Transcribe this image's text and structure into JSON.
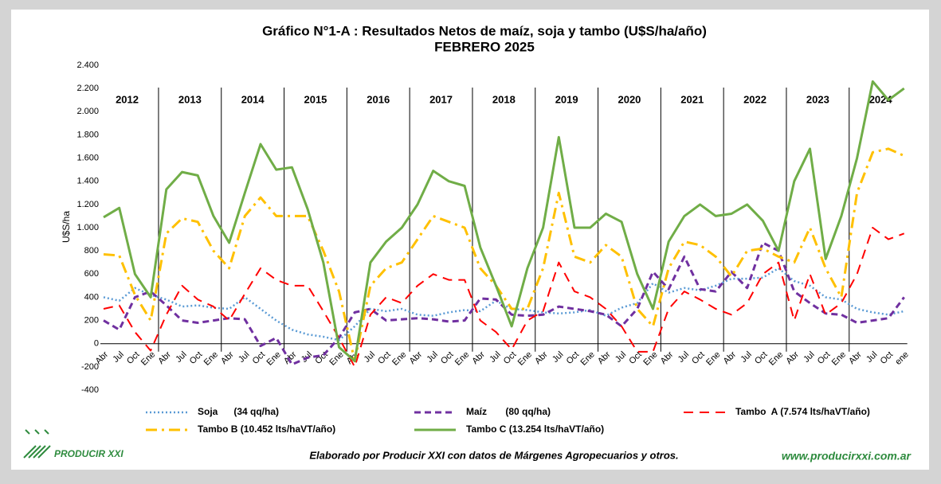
{
  "chart_data": {
    "type": "line",
    "title": "Gráfico N°1-A : Resultados Netos de maíz, soja y tambo (U$S/ha/año)",
    "subtitle": "FEBRERO 2025",
    "y_label": "U$S/ha",
    "years": [
      "2012",
      "2013",
      "2014",
      "2015",
      "2016",
      "2017",
      "2018",
      "2019",
      "2020",
      "2021",
      "2022",
      "2023",
      "2024"
    ],
    "categories": [
      "Abr",
      "Jul",
      "Oct",
      "Ene",
      "Abr",
      "Jul",
      "Oct",
      "Ene",
      "Abr",
      "Jul",
      "Oct",
      "Ene",
      "Abr",
      "Jul",
      "Oct",
      "Ene",
      "Abr",
      "Jul",
      "Oct",
      "Ene",
      "Abr",
      "Jul",
      "Oct",
      "Ene",
      "Abr",
      "Jul",
      "Oct",
      "Ene",
      "Abr",
      "Jul",
      "Oct",
      "Ene",
      "Abr",
      "Jul",
      "Oct",
      "Ene",
      "Abr",
      "Jul",
      "Oct",
      "Ene",
      "Abr",
      "Jul",
      "Oct",
      "Ene",
      "Abr",
      "Jul",
      "Oct",
      "Ene",
      "Abr",
      "Jul",
      "Oct",
      "ene"
    ],
    "ylim": [
      -400,
      2400
    ],
    "yticks": [
      -400,
      -200,
      0,
      200,
      400,
      600,
      800,
      {
        "value": 1000,
        "label": "1.000"
      },
      {
        "value": 1200,
        "label": "1.200"
      },
      {
        "value": 1400,
        "label": "1.400"
      },
      {
        "value": 1600,
        "label": "1.600"
      },
      {
        "value": 1800,
        "label": "1.800"
      },
      {
        "value": 2000,
        "label": "2.000"
      },
      {
        "value": 2200,
        "label": "2.200"
      },
      {
        "value": 2400,
        "label": "2.400"
      }
    ],
    "series": [
      {
        "name": "Soja      (34 qq/ha)",
        "color": "#5b9bd5",
        "dash": "dotted",
        "values": [
          400,
          370,
          480,
          420,
          380,
          320,
          330,
          310,
          300,
          400,
          300,
          200,
          120,
          80,
          60,
          30,
          150,
          300,
          280,
          300,
          250,
          240,
          270,
          290,
          280,
          370,
          300,
          290,
          270,
          260,
          270,
          290,
          240,
          310,
          350,
          520,
          440,
          480,
          460,
          500,
          560,
          560,
          570,
          650,
          540,
          500,
          400,
          380,
          300,
          270,
          250,
          280
        ]
      },
      {
        "name": "Maíz       (80 qq/ha)",
        "color": "#7030a0",
        "dash": "dashed",
        "values": [
          200,
          120,
          400,
          450,
          330,
          200,
          180,
          200,
          220,
          210,
          -20,
          50,
          -180,
          -120,
          -100,
          50,
          270,
          300,
          200,
          210,
          220,
          210,
          190,
          200,
          390,
          380,
          250,
          240,
          250,
          320,
          300,
          280,
          250,
          150,
          300,
          620,
          470,
          750,
          470,
          450,
          620,
          480,
          870,
          800,
          450,
          350,
          260,
          250,
          180,
          200,
          220,
          400
        ]
      },
      {
        "name": "Tambo  A (7.574 lts/haVT/año)",
        "color": "#ff0000",
        "dash": "longdash",
        "values": [
          300,
          330,
          100,
          -60,
          250,
          500,
          380,
          320,
          200,
          430,
          650,
          550,
          500,
          500,
          280,
          50,
          -200,
          250,
          400,
          350,
          500,
          600,
          550,
          550,
          200,
          100,
          -50,
          200,
          280,
          700,
          450,
          400,
          300,
          150,
          -70,
          -70,
          300,
          450,
          380,
          300,
          250,
          350,
          600,
          700,
          200,
          600,
          250,
          350,
          600,
          1000,
          900,
          950
        ]
      },
      {
        "name": "Tambo B (10.452 lts/haVT/año)",
        "color": "#ffc000",
        "dash": "dashdot",
        "values": [
          770,
          760,
          420,
          200,
          950,
          1080,
          1050,
          800,
          650,
          1100,
          1260,
          1100,
          1100,
          1100,
          800,
          450,
          -150,
          500,
          650,
          700,
          900,
          1100,
          1050,
          1000,
          650,
          500,
          300,
          300,
          650,
          1300,
          750,
          700,
          850,
          750,
          300,
          150,
          650,
          880,
          850,
          750,
          580,
          800,
          820,
          750,
          700,
          1000,
          650,
          400,
          1300,
          1650,
          1680,
          1620
        ]
      },
      {
        "name": "Tambo C (13.254 lts/haVT/año)",
        "color": "#70ad47",
        "dash": "solid",
        "values": [
          1090,
          1170,
          600,
          400,
          1330,
          1480,
          1450,
          1100,
          870,
          1300,
          1720,
          1500,
          1520,
          1160,
          700,
          -30,
          -150,
          700,
          880,
          1000,
          1200,
          1490,
          1400,
          1360,
          830,
          500,
          150,
          650,
          1000,
          1780,
          1000,
          1000,
          1120,
          1050,
          600,
          300,
          880,
          1100,
          1200,
          1100,
          1120,
          1200,
          1060,
          800,
          1400,
          1680,
          730,
          1100,
          1600,
          2260,
          2100,
          2200
        ]
      }
    ],
    "footer": {
      "logo": "PRODUCIR XXI",
      "source": "Elaborado por Producir XXI con datos de Márgenes Agropecuarios y otros.",
      "url": "www.producirxxi.com.ar"
    }
  }
}
